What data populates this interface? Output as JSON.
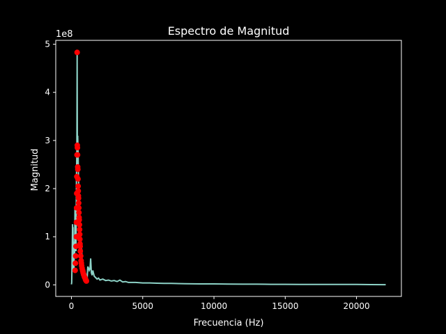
{
  "chart_data": {
    "type": "line",
    "title": "Espectro de Magnitud",
    "xlabel": "Frecuencia (Hz)",
    "ylabel": "Magnitud",
    "y_offset_label": "1e8",
    "xlim": [
      -1100,
      23150
    ],
    "ylim": [
      -0.24,
      5.08
    ],
    "y_scale_factor": 100000000,
    "x_ticks": [
      0,
      5000,
      10000,
      15000,
      20000
    ],
    "x_tick_labels": [
      "0",
      "5000",
      "10000",
      "15000",
      "20000"
    ],
    "y_ticks": [
      0,
      1,
      2,
      3,
      4,
      5
    ],
    "y_tick_labels": [
      "0",
      "1",
      "2",
      "3",
      "4",
      "5"
    ],
    "grid": false,
    "colors": {
      "background": "#000000",
      "spectrum": "#8dd3c7",
      "peaks": "#ff0000",
      "text": "#ffffff"
    },
    "series": [
      {
        "kind": "line",
        "x": [
          0,
          20,
          50,
          80,
          100,
          110,
          130,
          150,
          180,
          200,
          220,
          250,
          280,
          300,
          320,
          350,
          380,
          400,
          420,
          440,
          460,
          480,
          500,
          520,
          540,
          560,
          580,
          600,
          620,
          650,
          680,
          700,
          720,
          750,
          780,
          800,
          850,
          900,
          950,
          1000,
          1050,
          1100,
          1150,
          1200,
          1250,
          1300,
          1350,
          1400,
          1450,
          1500,
          1600,
          1700,
          1800,
          1900,
          2000,
          2200,
          2400,
          2600,
          2800,
          3000,
          3200,
          3400,
          3600,
          3800,
          4000,
          4500,
          5000,
          5500,
          6000,
          6500,
          7000,
          8000,
          9000,
          10000,
          11000,
          12000,
          13000,
          14000,
          15000,
          16000,
          17000,
          18000,
          19000,
          20000,
          21000,
          22050
        ],
        "y": [
          0.01,
          0.05,
          0.6,
          1.26,
          0.3,
          1.2,
          0.5,
          0.9,
          0.35,
          0.8,
          0.55,
          1.6,
          0.9,
          1.1,
          0.7,
          2.2,
          2.8,
          4.83,
          2.4,
          3.1,
          2.85,
          2.55,
          2.2,
          1.9,
          1.6,
          1.3,
          1.45,
          1.0,
          1.2,
          0.8,
          0.9,
          0.6,
          0.75,
          0.45,
          0.5,
          0.35,
          0.3,
          0.25,
          0.2,
          0.22,
          0.15,
          0.12,
          0.38,
          0.35,
          0.3,
          0.33,
          0.55,
          0.25,
          0.2,
          0.3,
          0.18,
          0.15,
          0.12,
          0.14,
          0.1,
          0.12,
          0.09,
          0.1,
          0.08,
          0.09,
          0.07,
          0.1,
          0.06,
          0.07,
          0.05,
          0.05,
          0.04,
          0.04,
          0.035,
          0.03,
          0.03,
          0.025,
          0.02,
          0.02,
          0.018,
          0.015,
          0.015,
          0.012,
          0.012,
          0.01,
          0.01,
          0.01,
          0.008,
          0.008,
          0.006,
          0.005
        ]
      },
      {
        "kind": "scatter",
        "x": [
          400,
          410,
          420,
          430,
          440,
          450,
          460,
          470,
          480,
          490,
          500,
          510,
          520,
          530,
          540,
          550,
          560,
          570,
          580,
          590,
          600,
          610,
          620,
          650,
          680,
          700,
          720,
          750,
          780,
          800,
          820,
          850,
          880,
          900,
          920,
          950,
          980,
          1000,
          1020,
          1050,
          300,
          320,
          340,
          350,
          360,
          370,
          380,
          390,
          260,
          280
        ],
        "y": [
          4.83,
          2.9,
          2.85,
          2.7,
          2.45,
          2.4,
          2.2,
          2.05,
          1.95,
          1.85,
          1.8,
          1.7,
          1.6,
          1.5,
          1.4,
          1.35,
          1.25,
          1.15,
          1.05,
          0.95,
          0.85,
          0.8,
          0.7,
          0.6,
          0.5,
          0.45,
          0.4,
          0.35,
          0.3,
          0.28,
          0.25,
          0.22,
          0.2,
          0.18,
          0.16,
          0.15,
          0.12,
          0.1,
          0.1,
          0.08,
          0.6,
          0.8,
          1.0,
          1.3,
          1.6,
          1.9,
          2.25,
          2.7,
          0.3,
          0.45
        ]
      }
    ]
  }
}
